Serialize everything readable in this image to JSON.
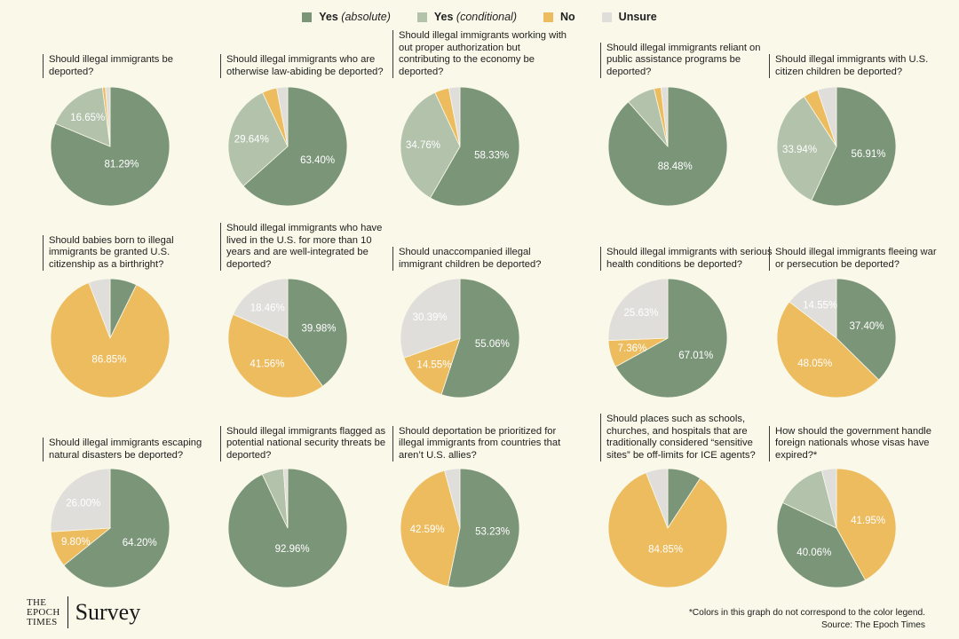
{
  "legend": [
    {
      "pre": "Yes ",
      "it": "(absolute)",
      "color": "#7b9579"
    },
    {
      "pre": "Yes ",
      "it": "(conditional)",
      "color": "#b2c2ab"
    },
    {
      "pre": "No",
      "it": "",
      "color": "#ecbc5f"
    },
    {
      "pre": "Unsure",
      "it": "",
      "color": "#dfdedb"
    }
  ],
  "colors": {
    "yes_absolute": "#7b9579",
    "yes_conditional": "#b2c2ab",
    "no": "#ecbc5f",
    "unsure": "#dfdedb",
    "background": "#f9f8e9"
  },
  "chart_data": [
    {
      "type": "pie",
      "title": "Should illegal immigrants be deported?",
      "values": [
        81.29,
        16.65,
        0.8,
        1.26
      ],
      "labels": [
        "81.29%",
        "16.65%",
        "",
        ""
      ]
    },
    {
      "type": "pie",
      "title": "Should illegal immigrants who are otherwise law-abiding be deported?",
      "values": [
        63.4,
        29.64,
        4.0,
        2.96
      ],
      "labels": [
        "63.40%",
        "29.64%",
        "",
        ""
      ]
    },
    {
      "type": "pie",
      "title": "Should illegal immigrants working with out proper authorization but contributing to the economy be deported?",
      "values": [
        58.33,
        34.76,
        3.9,
        3.01
      ],
      "labels": [
        "58.33%",
        "34.76%",
        "",
        ""
      ]
    },
    {
      "type": "pie",
      "title": "Should illegal immigrants reliant on public assistance programs be deported?",
      "values": [
        88.48,
        7.8,
        1.9,
        1.82
      ],
      "labels": [
        "88.48%",
        "",
        "",
        ""
      ]
    },
    {
      "type": "pie",
      "title": "Should illegal immigrants with U.S. citizen children be deported?",
      "values": [
        56.91,
        33.94,
        4.0,
        5.15
      ],
      "labels": [
        "56.91%",
        "33.94%",
        "",
        ""
      ]
    },
    {
      "type": "pie",
      "title": "Should babies born to illegal immigrants be granted U.S. citizenship as a birthright?",
      "values": [
        7.3,
        0,
        86.85,
        5.85
      ],
      "labels": [
        "",
        "",
        "86.85%",
        ""
      ]
    },
    {
      "type": "pie",
      "title": "Should illegal immigrants who have lived in the U.S. for more than 10 years and are well-integrated be deported?",
      "values": [
        39.98,
        0,
        41.56,
        18.46
      ],
      "labels": [
        "39.98%",
        "",
        "41.56%",
        "18.46%"
      ]
    },
    {
      "type": "pie",
      "title": "Should unaccompanied illegal immigrant children be deported?",
      "values": [
        55.06,
        0,
        14.55,
        30.39
      ],
      "labels": [
        "55.06%",
        "",
        "14.55%",
        "30.39%"
      ]
    },
    {
      "type": "pie",
      "title": "Should illegal immigrants with serious health conditions be deported?",
      "values": [
        67.01,
        0,
        7.36,
        25.63
      ],
      "labels": [
        "67.01%",
        "",
        "7.36%",
        "25.63%"
      ]
    },
    {
      "type": "pie",
      "title": "Should illegal immigrants fleeing war or persecution be deported?",
      "values": [
        37.4,
        0,
        48.05,
        14.55
      ],
      "labels": [
        "37.40%",
        "",
        "48.05%",
        "14.55%"
      ]
    },
    {
      "type": "pie",
      "title": "Should illegal immigrants escaping natural disasters be deported?",
      "values": [
        64.2,
        0,
        9.8,
        26.0
      ],
      "labels": [
        "64.20%",
        "",
        "9.80%",
        "26.00%"
      ]
    },
    {
      "type": "pie",
      "title": "Should illegal immigrants flagged as potential national security threats be deported?",
      "values": [
        92.96,
        5.9,
        0,
        1.14
      ],
      "labels": [
        "92.96%",
        "",
        "",
        ""
      ]
    },
    {
      "type": "pie",
      "title": "Should deportation be prioritized for illegal immigrants from countries that aren’t U.S. allies?",
      "values": [
        53.23,
        0,
        42.59,
        4.18
      ],
      "labels": [
        "53.23%",
        "",
        "42.59%",
        ""
      ]
    },
    {
      "type": "pie",
      "title": "Should places such as schools, churches, and hospitals that are traditionally considered “sensitive sites” be off-limits for ICE agents?",
      "values": [
        9.2,
        0,
        84.85,
        5.95
      ],
      "labels": [
        "",
        "",
        "84.85%",
        ""
      ]
    },
    {
      "type": "pie",
      "title": "How should the government handle foreign nationals whose visas have expired?*",
      "values": [
        41.95,
        40.06,
        14.0,
        3.99
      ],
      "labels": [
        "41.95%",
        "40.06%",
        "",
        ""
      ],
      "custom_colors": [
        "#ecbc5f",
        "#7b9579",
        "#b2c2ab",
        "#dfdedb"
      ]
    }
  ],
  "brand": {
    "line1": "THE",
    "line2": "EPOCH",
    "line3": "TIMES",
    "survey": "Survey"
  },
  "footnote": {
    "note": "*Colors in this graph do not correspond to the color legend.",
    "source": "Source: The Epoch Times"
  }
}
